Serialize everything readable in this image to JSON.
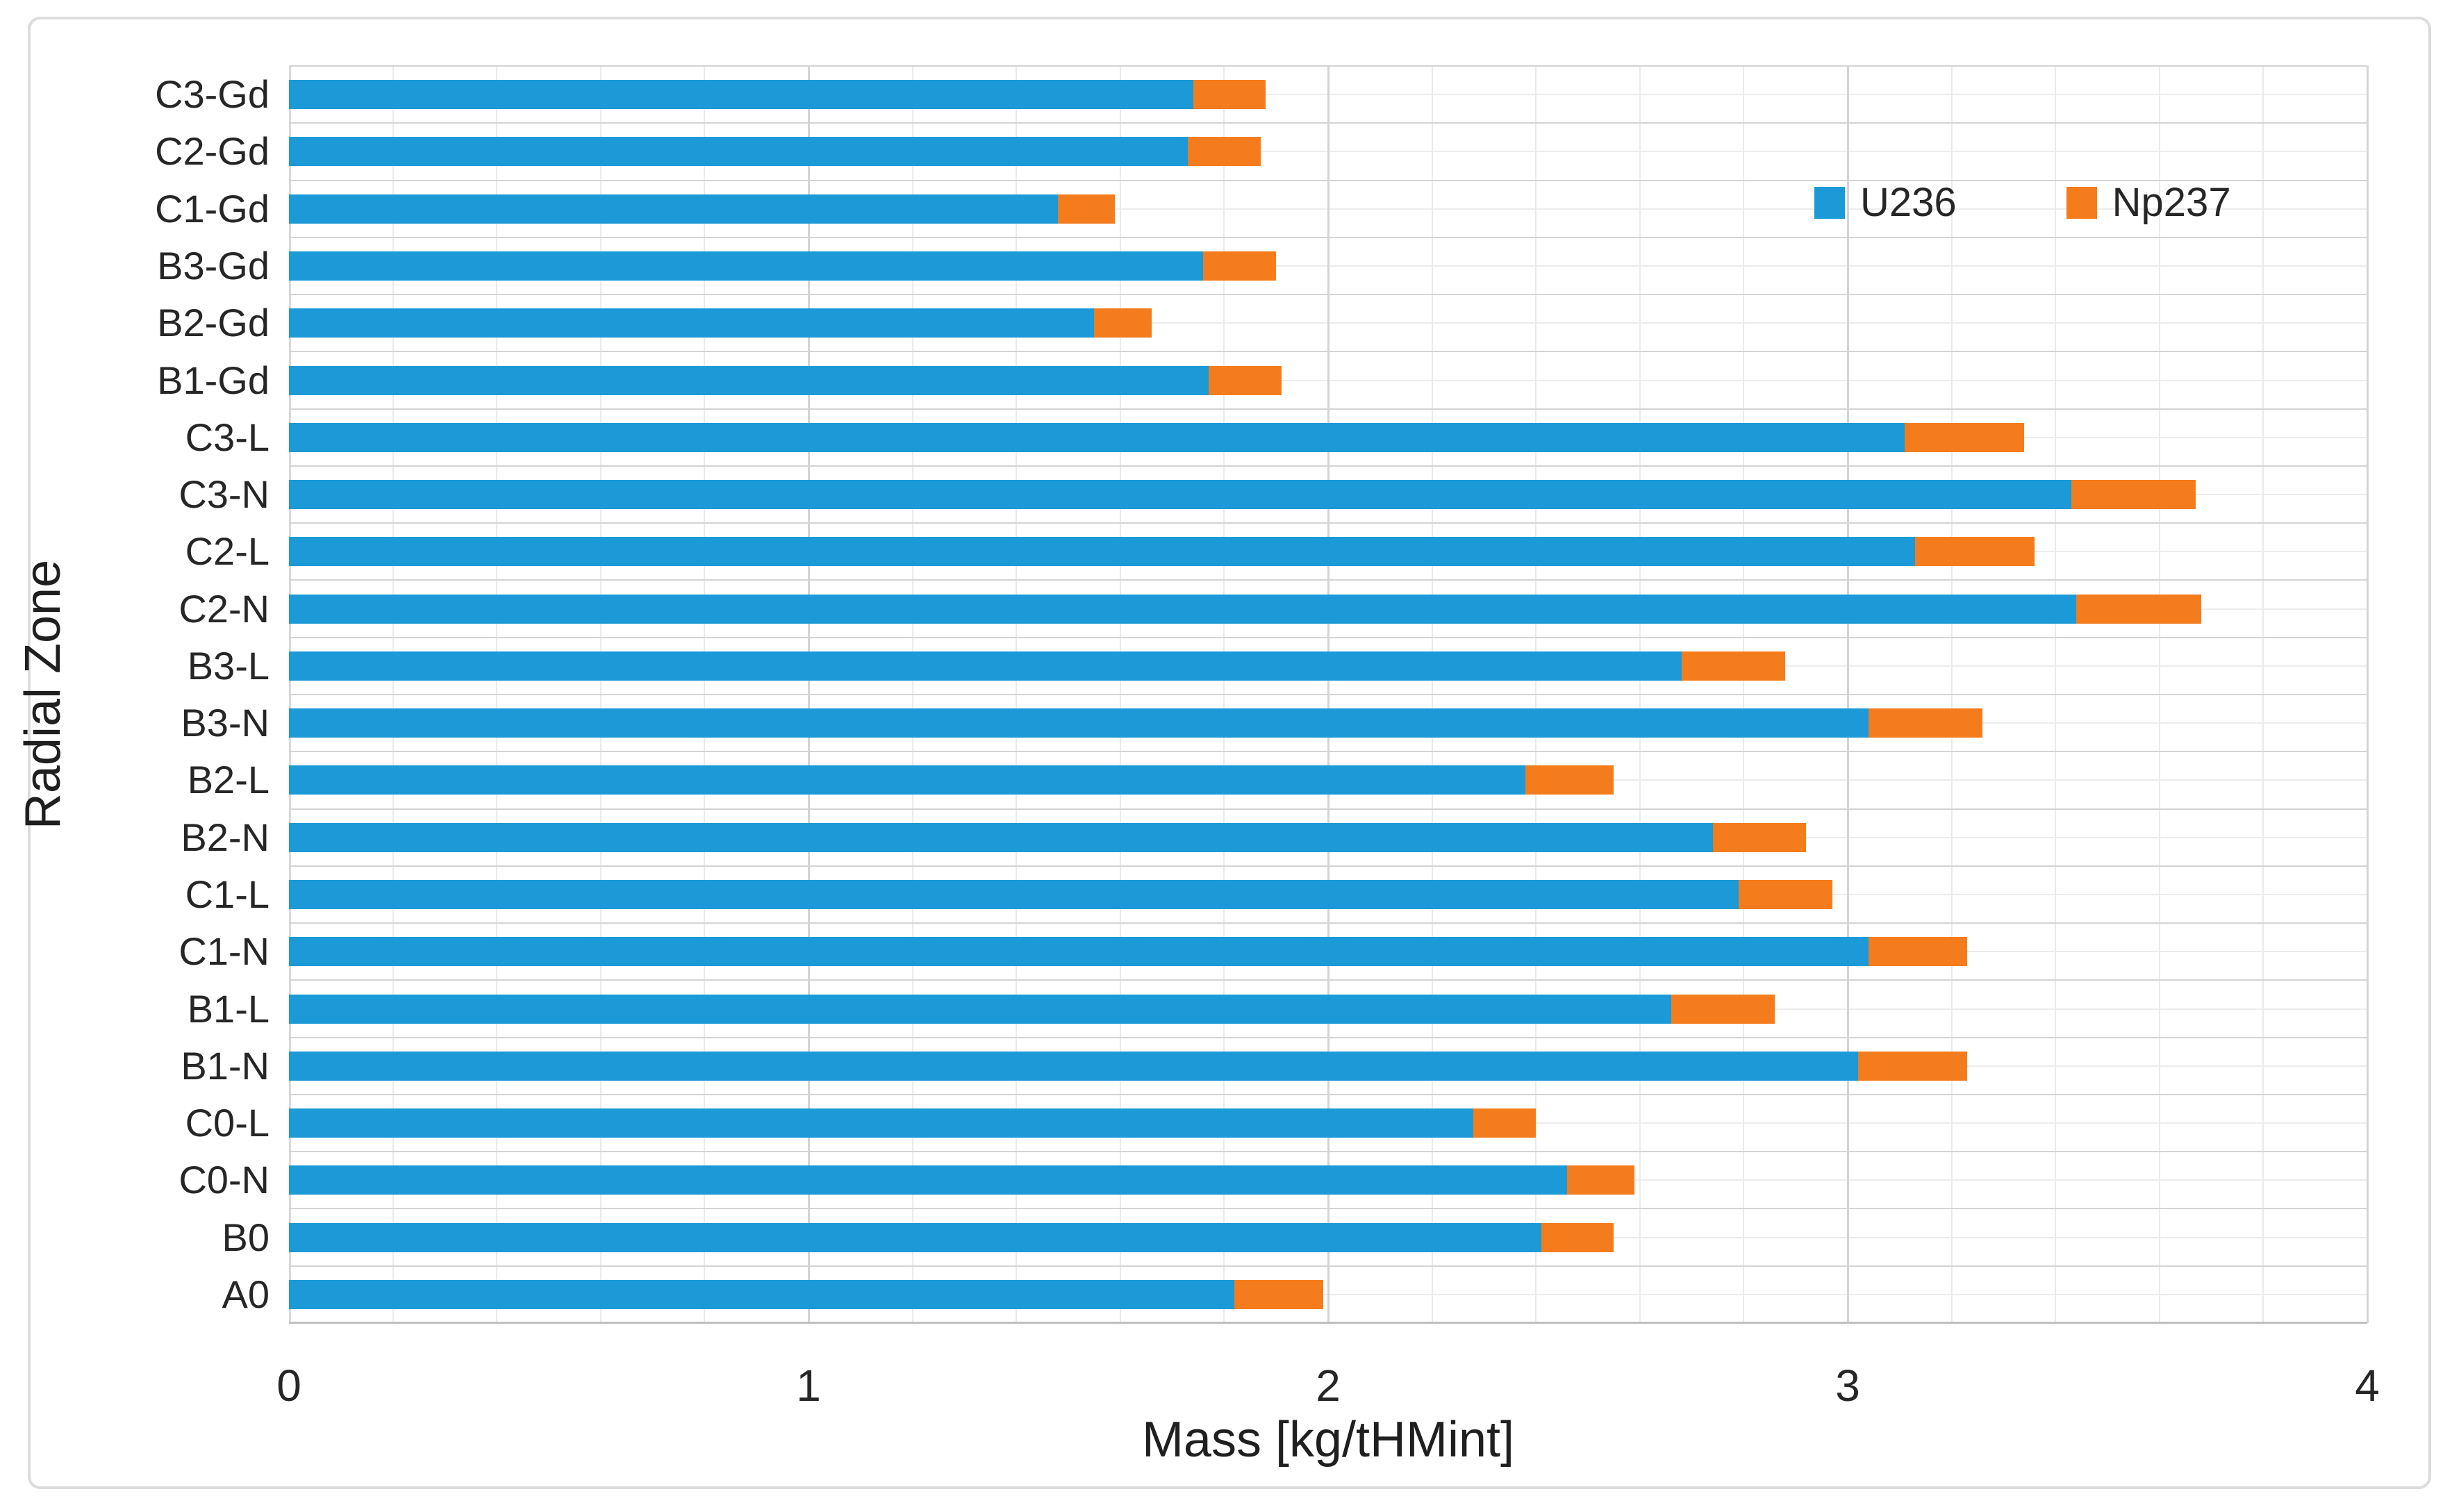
{
  "chart_data": {
    "type": "bar",
    "orientation": "horizontal",
    "stacked": true,
    "title": "",
    "xlabel": "Mass [kg/tHMint]",
    "ylabel": "Radial Zone",
    "xlim": [
      0,
      4
    ],
    "x_tick_labels": [
      "0",
      "1",
      "2",
      "3",
      "4"
    ],
    "x_tick_values": [
      0,
      1,
      2,
      3,
      4
    ],
    "x_minor_grid_step": 0.2,
    "grid": "major and minor gridlines on",
    "legend_position": "inside top-right",
    "categories": [
      "C3-Gd",
      "C2-Gd",
      "C1-Gd",
      "B3-Gd",
      "B2-Gd",
      "B1-Gd",
      "C3-L",
      "C3-N",
      "C2-L",
      "C2-N",
      "B3-L",
      "B3-N",
      "B2-L",
      "B2-N",
      "C1-L",
      "C1-N",
      "B1-L",
      "B1-N",
      "C0-L",
      "C0-N",
      "B0",
      "A0"
    ],
    "series": [
      {
        "name": "U236",
        "color": "#1b9ad7",
        "values": [
          1.74,
          1.73,
          1.48,
          1.76,
          1.55,
          1.77,
          3.11,
          3.43,
          3.13,
          3.44,
          2.68,
          3.04,
          2.38,
          2.74,
          2.79,
          3.04,
          2.66,
          3.02,
          2.28,
          2.46,
          2.41,
          1.82
        ]
      },
      {
        "name": "Np237",
        "color": "#f57c1c",
        "values": [
          0.14,
          0.14,
          0.11,
          0.14,
          0.11,
          0.14,
          0.23,
          0.24,
          0.23,
          0.24,
          0.2,
          0.22,
          0.17,
          0.18,
          0.18,
          0.19,
          0.2,
          0.21,
          0.12,
          0.13,
          0.14,
          0.17
        ]
      }
    ]
  },
  "legend": {
    "items": [
      {
        "label": "U236",
        "color": "#1b9ad7"
      },
      {
        "label": "Np237",
        "color": "#f57c1c"
      }
    ]
  }
}
